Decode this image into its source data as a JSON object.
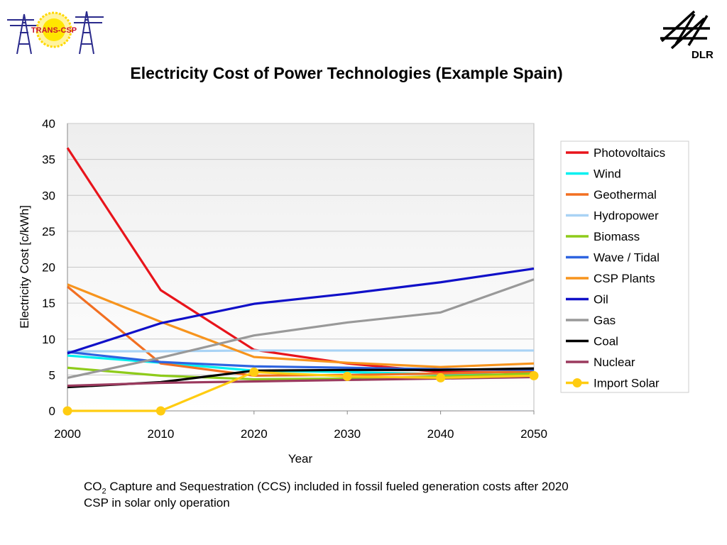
{
  "logos": {
    "left_text": "TRANS-CSP",
    "right_text": "DLR"
  },
  "footnotes": {
    "line1_prefix": "CO",
    "line1_sub": "2",
    "line1_rest": " Capture and Sequestration (CCS) included in fossil fueled generation costs after 2020",
    "line2": "CSP in solar only operation"
  },
  "chart_data": {
    "type": "line",
    "title": "Electricity Cost of Power Technologies (Example Spain)",
    "xlabel": "Year",
    "ylabel": "Electricity Cost [c/kWh]",
    "x": [
      2000,
      2010,
      2020,
      2030,
      2040,
      2050
    ],
    "xlim": [
      2000,
      2050
    ],
    "ylim": [
      0,
      40
    ],
    "yticks": [
      0,
      5,
      10,
      15,
      20,
      25,
      30,
      35,
      40
    ],
    "grid": true,
    "legend_position": "right",
    "series": [
      {
        "name": "Photovoltaics",
        "color": "#e8141b",
        "values": [
          36.6,
          16.8,
          8.5,
          6.6,
          5.4,
          5.4
        ]
      },
      {
        "name": "Wind",
        "color": "#00f0f0",
        "values": [
          7.7,
          6.7,
          5.6,
          5.4,
          5.1,
          5.0
        ]
      },
      {
        "name": "Geothermal",
        "color": "#f26f21",
        "values": [
          17.3,
          6.6,
          4.9,
          5.0,
          5.2,
          5.5
        ]
      },
      {
        "name": "Hydropower",
        "color": "#a9d3f5",
        "values": [
          8.3,
          8.3,
          8.4,
          8.4,
          8.4,
          8.4
        ]
      },
      {
        "name": "Biomass",
        "color": "#8ecb1a",
        "values": [
          6.0,
          4.9,
          4.4,
          4.5,
          4.8,
          5.2
        ]
      },
      {
        "name": "Wave / Tidal",
        "color": "#2e64e0",
        "values": [
          8.2,
          6.8,
          6.2,
          6.0,
          5.8,
          5.7
        ]
      },
      {
        "name": "CSP Plants",
        "color": "#f7941d",
        "values": [
          17.6,
          12.4,
          7.5,
          6.7,
          6.1,
          6.6
        ]
      },
      {
        "name": "Oil",
        "color": "#1010c8",
        "values": [
          8.0,
          12.2,
          14.9,
          16.3,
          17.9,
          19.8
        ]
      },
      {
        "name": "Gas",
        "color": "#999999",
        "values": [
          4.6,
          7.4,
          10.5,
          12.3,
          13.7,
          18.3
        ]
      },
      {
        "name": "Coal",
        "color": "#000000",
        "values": [
          3.3,
          4.0,
          5.6,
          5.7,
          5.7,
          5.9
        ]
      },
      {
        "name": "Nuclear",
        "color": "#9b3a5e",
        "values": [
          3.5,
          3.9,
          4.1,
          4.3,
          4.5,
          4.7
        ]
      },
      {
        "name": "Import Solar",
        "color": "#ffcc11",
        "values": [
          0.0,
          0.0,
          5.4,
          4.8,
          4.6,
          4.9
        ],
        "markers": true
      }
    ]
  }
}
